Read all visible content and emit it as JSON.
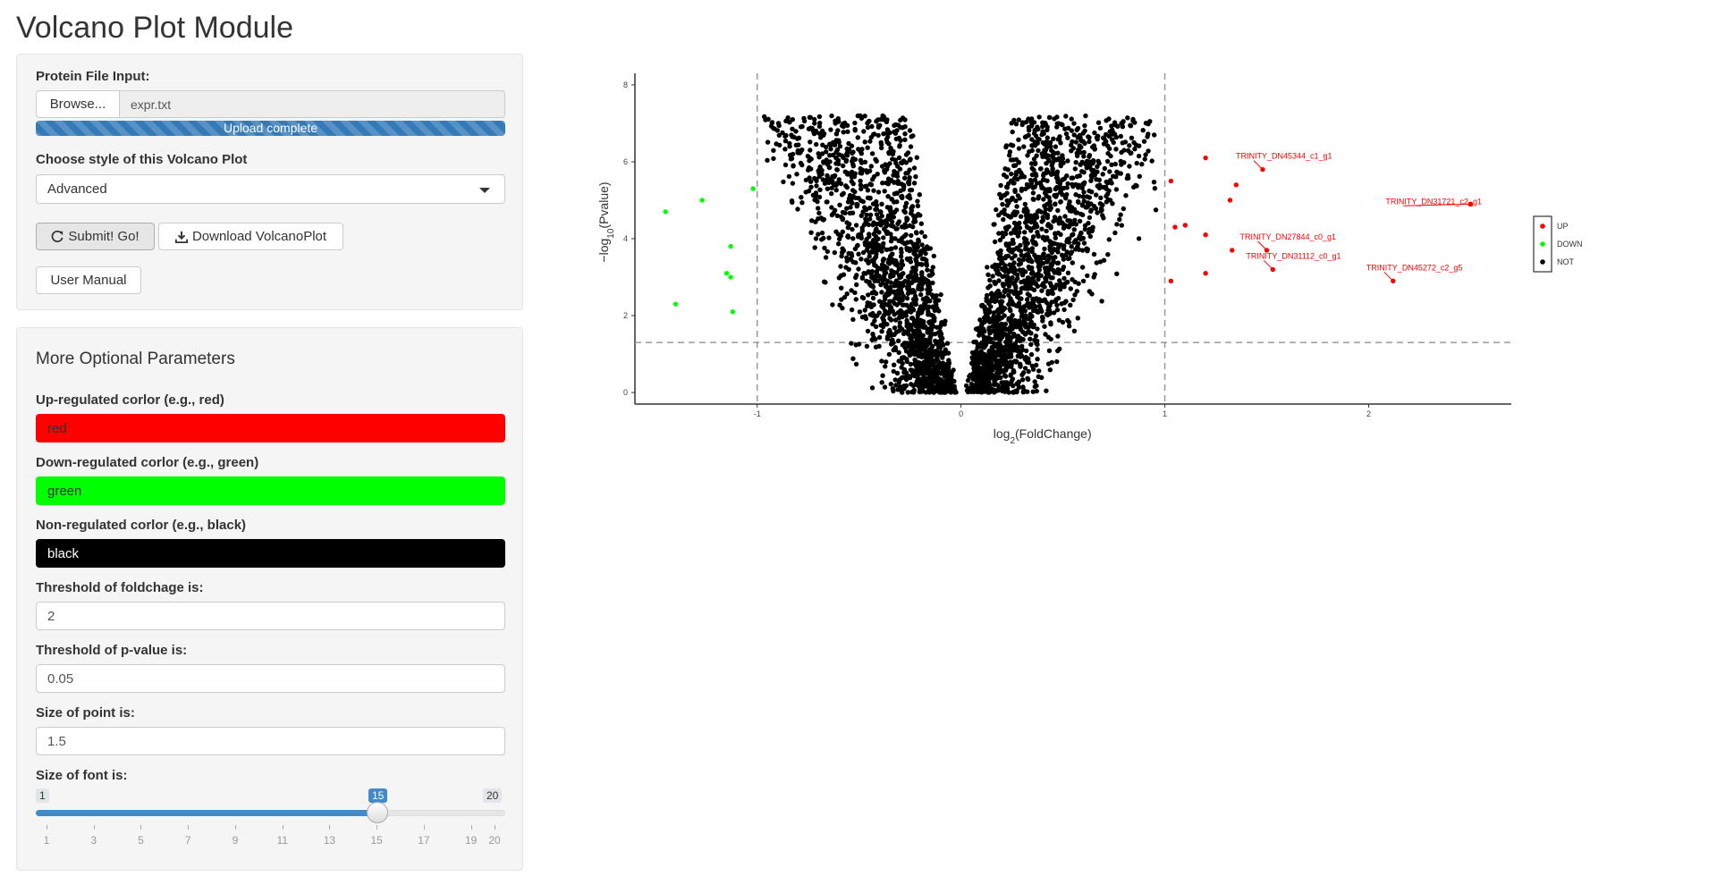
{
  "title": "Volcano Plot Module",
  "file_input": {
    "label": "Protein File Input:",
    "browse_label": "Browse...",
    "file_name": "expr.txt",
    "progress_text": "Upload complete",
    "progress": 1.0
  },
  "style_select": {
    "label": "Choose style of this Volcano Plot",
    "value": "Advanced"
  },
  "buttons": {
    "submit": "Submit! Go!",
    "download": "Download VolcanoPlot",
    "manual": "User Manual"
  },
  "optional": {
    "title": "More Optional Parameters",
    "up_color": {
      "label": "Up-regulated corlor (e.g., red)",
      "value": "red",
      "swatch": "#ff0000",
      "text_color": "#333333"
    },
    "down_color": {
      "label": "Down-regulated corlor (e.g., green)",
      "value": "green",
      "swatch": "#00ff00",
      "text_color": "#333333"
    },
    "non_color": {
      "label": "Non-regulated corlor (e.g., black)",
      "value": "black",
      "swatch": "#000000",
      "text_color": "#ffffff"
    },
    "fold_threshold": {
      "label": "Threshold of foldchage is:",
      "value": "2"
    },
    "p_threshold": {
      "label": "Threshold of p-value is:",
      "value": "0.05"
    },
    "point_size": {
      "label": "Size of point is:",
      "value": "1.5"
    },
    "font_size": {
      "label": "Size of font is:",
      "min": 1,
      "max": 20,
      "value": 15,
      "min_label": "1",
      "max_label": "20",
      "value_label": "15",
      "grid": [
        "1",
        "3",
        "5",
        "7",
        "9",
        "11",
        "13",
        "15",
        "17",
        "19",
        "20"
      ]
    }
  },
  "chart_data": {
    "type": "scatter",
    "xlabel_main": "log",
    "xlabel_sub": "2",
    "xlabel_rest": "(FoldChange)",
    "ylabel_main": "−log",
    "ylabel_sub": "10",
    "ylabel_rest": "(Pvalue)",
    "xlim": [
      -1.6,
      2.7
    ],
    "ylim": [
      -0.3,
      8.3
    ],
    "x_ticks": [
      "-1",
      "0",
      "1",
      "2"
    ],
    "y_ticks": [
      "0",
      "2",
      "4",
      "6",
      "8"
    ],
    "vlines": [
      -1,
      1
    ],
    "hline": 1.3,
    "grid": false,
    "legend": {
      "position": "right",
      "items": [
        "UP",
        "DOWN",
        "NOT"
      ]
    },
    "colors": {
      "UP": "#ff0000",
      "DOWN": "#00ff00",
      "NOT": "#000000"
    },
    "up_points": [
      [
        1.03,
        5.5
      ],
      [
        1.05,
        4.3
      ],
      [
        1.1,
        4.35
      ],
      [
        1.03,
        2.9
      ],
      [
        1.2,
        6.1
      ],
      [
        1.2,
        4.1
      ],
      [
        1.2,
        3.1
      ],
      [
        1.32,
        5.0
      ],
      [
        1.33,
        3.7
      ],
      [
        1.35,
        5.4
      ],
      [
        2.5,
        4.9
      ]
    ],
    "down_points": [
      [
        -1.45,
        4.7
      ],
      [
        -1.4,
        2.3
      ],
      [
        -1.27,
        5.0
      ],
      [
        -1.13,
        3.8
      ],
      [
        -1.15,
        3.1
      ],
      [
        -1.13,
        3.0
      ],
      [
        -1.12,
        2.1
      ],
      [
        -1.02,
        5.3
      ]
    ],
    "labeled_points": [
      {
        "name": "TRINITY_DN45344_c1_g1",
        "x": 1.48,
        "y": 5.8
      },
      {
        "name": "TRINITY_DN31721_c2_g1",
        "x": 2.5,
        "y": 4.9
      },
      {
        "name": "TRINITY_DN27844_c0_g1",
        "x": 1.5,
        "y": 3.7
      },
      {
        "name": "TRINITY_DN31112_c0_g1",
        "x": 1.53,
        "y": 3.2
      },
      {
        "name": "TRINITY_DN45272_c2_g5",
        "x": 2.12,
        "y": 2.9
      }
    ],
    "not_regulated_count": 3400
  }
}
